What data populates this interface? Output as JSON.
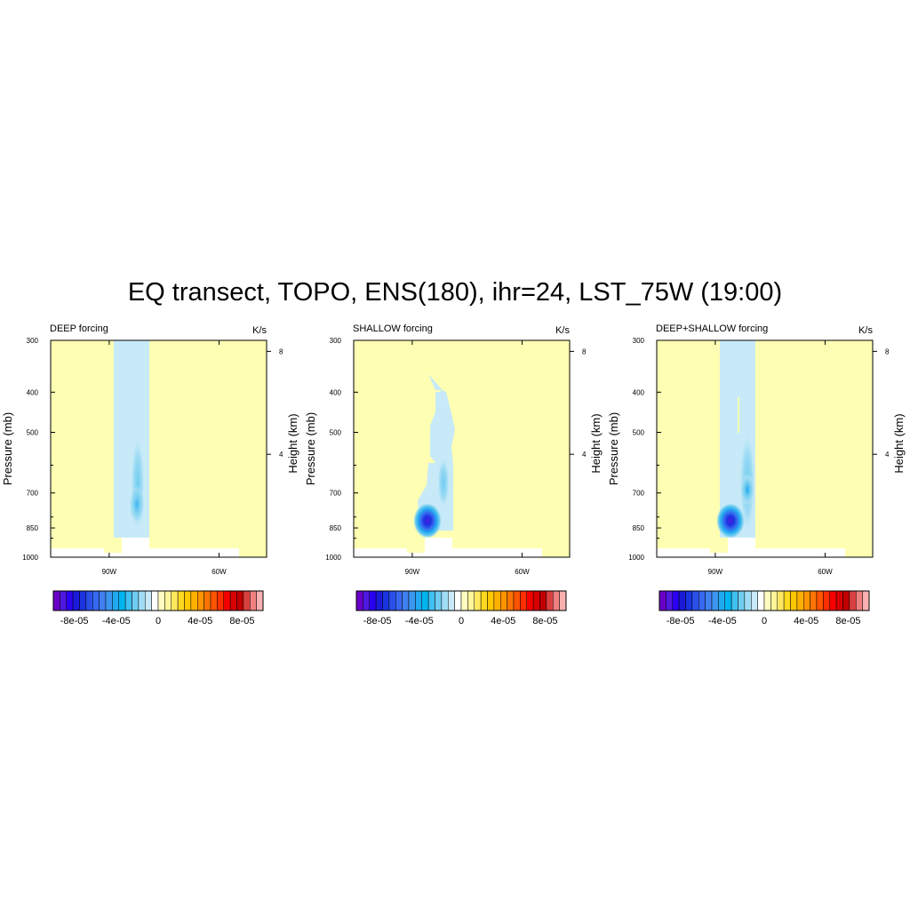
{
  "figure": {
    "title": "EQ transect, TOPO, ENS(180), ihr=24, LST_75W (19:00)"
  },
  "colors": {
    "background_fill": "#ffffb3",
    "weak_negative_fill": "#c8e6f7",
    "missing_fill": "#ffffff"
  },
  "colorbar": {
    "levels": [
      "-8e-05",
      "-4e-05",
      "0",
      "4e-05",
      "8e-05"
    ],
    "level_values": [
      -8e-05,
      -4e-05,
      0,
      4e-05,
      8e-05
    ],
    "range": [
      -0.0001,
      0.0001
    ],
    "swatches": [
      "#6a00c8",
      "#5018e0",
      "#2a00f0",
      "#1a1ad8",
      "#1a34e0",
      "#2a50e8",
      "#3868f0",
      "#4080f0",
      "#3c96f0",
      "#20a8f0",
      "#00b4f0",
      "#40c0f0",
      "#70ccf0",
      "#a0dcf4",
      "#c8eaf8",
      "#ffffff",
      "#fffcc0",
      "#fff59a",
      "#ffe860",
      "#ffd820",
      "#ffc800",
      "#ffb000",
      "#ff9400",
      "#ff7400",
      "#ff5400",
      "#ff2e00",
      "#f40000",
      "#d80000",
      "#c00000",
      "#d84040",
      "#f08080",
      "#f8b0b0"
    ]
  },
  "chart_data": [
    {
      "type": "heatmap",
      "title": "DEEP forcing",
      "units": "K/s",
      "xlabel": "",
      "ylabel": "Pressure (mb)",
      "y2label": "Height (km)",
      "xlim": [
        106,
        47
      ],
      "ylim": [
        1000,
        300
      ],
      "yscale": "log",
      "x_ticks": [
        "90W",
        "60W"
      ],
      "x_tick_values": [
        90,
        60
      ],
      "y_ticks": [
        "300",
        "400",
        "500",
        "700",
        "850",
        "1000"
      ],
      "y_tick_values": [
        300,
        400,
        500,
        700,
        850,
        1000
      ],
      "y2_ticks": [
        "8",
        "4"
      ],
      "y2_tick_values": [
        8,
        4
      ],
      "negative_regions": [
        {
          "lon_range": [
            88,
            79
          ],
          "p_range": [
            870,
            300
          ],
          "value": -5e-06
        },
        {
          "lon_center": 77,
          "p_range": [
            800,
            480
          ],
          "min_value": -2e-05
        }
      ],
      "minimum": -2e-05
    },
    {
      "type": "heatmap",
      "title": "SHALLOW forcing",
      "units": "K/s",
      "xlabel": "",
      "ylabel": "Pressure (mb)",
      "y2label": "Height (km)",
      "xlim": [
        106,
        47
      ],
      "ylim": [
        1000,
        300
      ],
      "yscale": "log",
      "x_ticks": [
        "90W",
        "60W"
      ],
      "x_tick_values": [
        90,
        60
      ],
      "y_ticks": [
        "300",
        "400",
        "500",
        "700",
        "850",
        "1000"
      ],
      "y_tick_values": [
        300,
        400,
        500,
        700,
        850,
        1000
      ],
      "y2_ticks": [
        "8",
        "4"
      ],
      "y2_tick_values": [
        8,
        4
      ],
      "negative_regions": [
        {
          "lon_center": 81,
          "p_range": [
            870,
            500
          ],
          "value": -5e-06
        },
        {
          "lon_center": 81,
          "p_center": 800,
          "min_value": -0.0001
        },
        {
          "lon_center": 77,
          "p_center": 680,
          "min_value": -3e-05
        }
      ],
      "minimum": -0.0001
    },
    {
      "type": "heatmap",
      "title": "DEEP+SHALLOW forcing",
      "units": "K/s",
      "xlabel": "",
      "ylabel": "Pressure (mb)",
      "y2label": "Height (km)",
      "xlim": [
        106,
        47
      ],
      "ylim": [
        1000,
        300
      ],
      "yscale": "log",
      "x_ticks": [
        "90W",
        "60W"
      ],
      "x_tick_values": [
        90,
        60
      ],
      "y_ticks": [
        "300",
        "400",
        "500",
        "700",
        "850",
        "1000"
      ],
      "y_tick_values": [
        300,
        400,
        500,
        700,
        850,
        1000
      ],
      "y2_ticks": [
        "8",
        "4"
      ],
      "y2_tick_values": [
        8,
        4
      ],
      "negative_regions": [
        {
          "lon_range": [
            88,
            79
          ],
          "p_range": [
            870,
            300
          ],
          "value": -5e-06
        },
        {
          "lon_center": 81,
          "p_center": 800,
          "min_value": -0.0001
        },
        {
          "lon_center": 77,
          "p_center": 650,
          "min_value": -4e-05
        }
      ],
      "minimum": -0.0001
    }
  ]
}
